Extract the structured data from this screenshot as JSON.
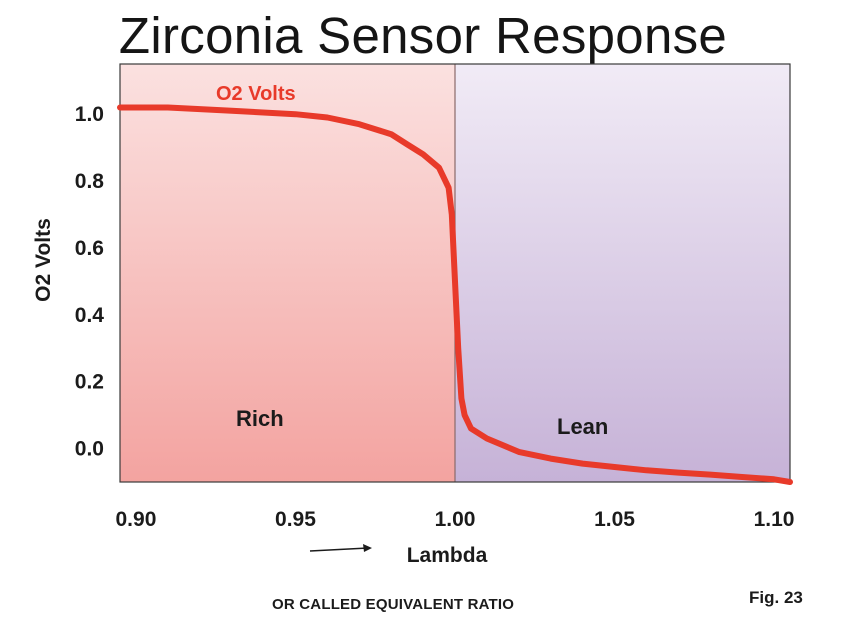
{
  "title": "Zirconia Sensor Response",
  "note": "OR CALLED EQUIVALENT RATIO",
  "figure_label": "Fig. 23",
  "chart_data": {
    "type": "line",
    "title": "Zirconia Sensor Response",
    "xlabel": "Lambda",
    "ylabel": "O2 Volts",
    "xlim": [
      0.895,
      1.105
    ],
    "ylim": [
      -0.1,
      1.15
    ],
    "x_ticks": [
      "0.90",
      "0.95",
      "1.00",
      "1.05",
      "1.10"
    ],
    "y_ticks": [
      "1.0",
      "0.8",
      "0.6",
      "0.4",
      "0.2",
      "0.0"
    ],
    "grid": false,
    "series": [
      {
        "name": "O2 Volts",
        "color": "#e83a2a",
        "x": [
          0.895,
          0.91,
          0.93,
          0.95,
          0.96,
          0.97,
          0.98,
          0.985,
          0.99,
          0.995,
          0.998,
          0.999,
          1.0,
          1.001,
          1.002,
          1.003,
          1.005,
          1.01,
          1.02,
          1.03,
          1.04,
          1.05,
          1.06,
          1.07,
          1.08,
          1.09,
          1.1,
          1.105
        ],
        "y": [
          1.02,
          1.02,
          1.01,
          1.0,
          0.99,
          0.97,
          0.94,
          0.91,
          0.88,
          0.84,
          0.78,
          0.7,
          0.5,
          0.3,
          0.15,
          0.1,
          0.06,
          0.03,
          -0.01,
          -0.03,
          -0.045,
          -0.055,
          -0.065,
          -0.072,
          -0.078,
          -0.085,
          -0.092,
          -0.1
        ]
      }
    ],
    "regions": [
      {
        "label": "Rich",
        "x_range": [
          0.895,
          1.0
        ],
        "color": "#f3a3a0"
      },
      {
        "label": "Lean",
        "x_range": [
          1.0,
          1.105
        ],
        "color": "#c6b2d7"
      }
    ]
  }
}
